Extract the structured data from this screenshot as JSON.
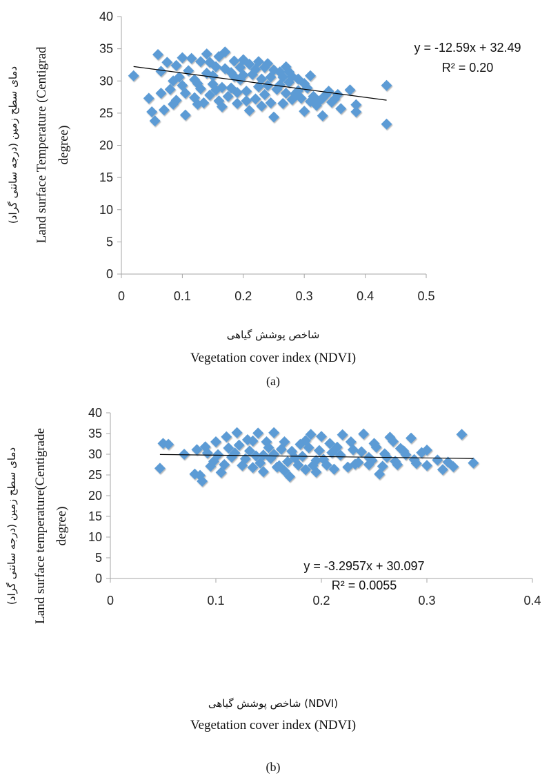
{
  "chart_data": [
    {
      "type": "scatter",
      "panel": "a",
      "xlim": [
        0,
        0.5
      ],
      "ylim": [
        0,
        40
      ],
      "x_ticks": [
        "0",
        "0.1",
        "0.2",
        "0.3",
        "0.4",
        "0.5"
      ],
      "y_ticks": [
        "0",
        "5",
        "10",
        "15",
        "20",
        "25",
        "30",
        "35",
        "40"
      ],
      "xlabel_fa": "شاخص پوشش گیاهی",
      "xlabel": "Vegetation cover index (NDVI)",
      "ylabel_fa": "دمای سطح زمین (درجه سانتی گراد)",
      "ylabel_lines": [
        "Land surface Temperature (Centigrad",
        "degree)"
      ],
      "trendline": {
        "slope": -12.59,
        "intercept": 32.49,
        "x_range": [
          0.02,
          0.435
        ]
      },
      "equation": "y = -12.59x + 32.49",
      "r2": "R² = 0.20",
      "caption": "(a)",
      "marker_color": "#5B9BD5",
      "points": [
        [
          0.02,
          30.8
        ],
        [
          0.055,
          23.8
        ],
        [
          0.06,
          34.1
        ],
        [
          0.07,
          25.5
        ],
        [
          0.045,
          27.3
        ],
        [
          0.05,
          25.2
        ],
        [
          0.105,
          24.7
        ],
        [
          0.065,
          31.5
        ],
        [
          0.08,
          28.7
        ],
        [
          0.09,
          32.4
        ],
        [
          0.1,
          29.3
        ],
        [
          0.12,
          27.4
        ],
        [
          0.13,
          33.0
        ],
        [
          0.14,
          34.2
        ],
        [
          0.15,
          30.8
        ],
        [
          0.16,
          26.9
        ],
        [
          0.17,
          34.5
        ],
        [
          0.18,
          31.3
        ],
        [
          0.19,
          28.2
        ],
        [
          0.2,
          33.3
        ],
        [
          0.21,
          25.4
        ],
        [
          0.22,
          31.8
        ],
        [
          0.23,
          26.1
        ],
        [
          0.24,
          32.7
        ],
        [
          0.25,
          24.4
        ],
        [
          0.26,
          29.4
        ],
        [
          0.27,
          32.2
        ],
        [
          0.28,
          27.1
        ],
        [
          0.29,
          30.3
        ],
        [
          0.3,
          25.3
        ],
        [
          0.31,
          30.8
        ],
        [
          0.32,
          26.2
        ],
        [
          0.33,
          24.6
        ],
        [
          0.34,
          28.4
        ],
        [
          0.35,
          27.2
        ],
        [
          0.36,
          25.7
        ],
        [
          0.375,
          28.6
        ],
        [
          0.385,
          25.2
        ],
        [
          0.385,
          26.3
        ],
        [
          0.435,
          29.3
        ],
        [
          0.435,
          23.3
        ],
        [
          0.11,
          31.6
        ],
        [
          0.125,
          29.6
        ],
        [
          0.145,
          27.8
        ],
        [
          0.155,
          32.2
        ],
        [
          0.165,
          29.0
        ],
        [
          0.175,
          27.6
        ],
        [
          0.185,
          33.1
        ],
        [
          0.195,
          30.2
        ],
        [
          0.205,
          28.4
        ],
        [
          0.215,
          31.0
        ],
        [
          0.225,
          29.1
        ],
        [
          0.235,
          27.9
        ],
        [
          0.245,
          30.6
        ],
        [
          0.255,
          28.7
        ],
        [
          0.265,
          26.5
        ],
        [
          0.275,
          29.8
        ],
        [
          0.285,
          28.0
        ],
        [
          0.295,
          27.3
        ],
        [
          0.305,
          28.9
        ],
        [
          0.315,
          27.6
        ],
        [
          0.325,
          26.9
        ],
        [
          0.335,
          27.8
        ],
        [
          0.345,
          26.7
        ],
        [
          0.355,
          27.9
        ],
        [
          0.09,
          27.0
        ],
        [
          0.095,
          30.6
        ],
        [
          0.075,
          32.9
        ],
        [
          0.085,
          26.4
        ],
        [
          0.115,
          33.5
        ],
        [
          0.135,
          26.6
        ],
        [
          0.14,
          31.2
        ],
        [
          0.16,
          33.8
        ],
        [
          0.19,
          26.5
        ],
        [
          0.2,
          30.9
        ],
        [
          0.21,
          32.6
        ],
        [
          0.22,
          27.2
        ],
        [
          0.24,
          29.3
        ],
        [
          0.26,
          31.4
        ],
        [
          0.27,
          28.1
        ],
        [
          0.28,
          30.7
        ],
        [
          0.3,
          29.6
        ],
        [
          0.1,
          33.6
        ],
        [
          0.12,
          30.2
        ],
        [
          0.13,
          28.8
        ],
        [
          0.15,
          29.5
        ],
        [
          0.17,
          31.9
        ],
        [
          0.18,
          28.9
        ],
        [
          0.23,
          30.3
        ],
        [
          0.25,
          31.7
        ],
        [
          0.29,
          28.5
        ],
        [
          0.31,
          26.8
        ],
        [
          0.33,
          27.3
        ],
        [
          0.065,
          28.1
        ],
        [
          0.085,
          30.0
        ],
        [
          0.105,
          28.1
        ],
        [
          0.145,
          32.9
        ],
        [
          0.185,
          30.7
        ],
        [
          0.225,
          33.0
        ],
        [
          0.265,
          30.6
        ],
        [
          0.245,
          26.6
        ],
        [
          0.205,
          26.9
        ],
        [
          0.165,
          26.0
        ],
        [
          0.125,
          26.4
        ],
        [
          0.155,
          28.6
        ],
        [
          0.195,
          32.1
        ],
        [
          0.235,
          32.1
        ],
        [
          0.275,
          31.4
        ]
      ]
    },
    {
      "type": "scatter",
      "panel": "b",
      "xlim": [
        0,
        0.4
      ],
      "ylim": [
        0,
        40
      ],
      "x_ticks": [
        "0",
        "0.1",
        "0.2",
        "0.3",
        "0.4"
      ],
      "y_ticks": [
        "0",
        "5",
        "10",
        "15",
        "20",
        "25",
        "30",
        "35",
        "40"
      ],
      "xlabel_fa": "شاخص پوشش گیاهی (NDVI)",
      "xlabel": "Vegetation cover index (NDVI)",
      "ylabel_fa": "دمای سطح زمین (درجه سانتی گراد)",
      "ylabel_lines": [
        "Land surface temperature(Centigrade",
        "degree)"
      ],
      "trendline": {
        "slope": -3.2957,
        "intercept": 30.097,
        "x_range": [
          0.047,
          0.344
        ]
      },
      "equation": "y = -3.2957x + 30.097",
      "r2": "R² = 0.0055",
      "caption": "(b)",
      "marker_color": "#5B9BD5",
      "points": [
        [
          0.047,
          26.6
        ],
        [
          0.05,
          32.6
        ],
        [
          0.055,
          32.4
        ],
        [
          0.07,
          30.0
        ],
        [
          0.08,
          25.2
        ],
        [
          0.085,
          24.9
        ],
        [
          0.087,
          23.5
        ],
        [
          0.09,
          31.8
        ],
        [
          0.095,
          27.1
        ],
        [
          0.1,
          33.0
        ],
        [
          0.105,
          25.6
        ],
        [
          0.11,
          34.2
        ],
        [
          0.115,
          29.3
        ],
        [
          0.12,
          35.2
        ],
        [
          0.125,
          27.3
        ],
        [
          0.13,
          33.5
        ],
        [
          0.135,
          26.8
        ],
        [
          0.14,
          35.1
        ],
        [
          0.145,
          29.8
        ],
        [
          0.15,
          31.6
        ],
        [
          0.155,
          35.2
        ],
        [
          0.16,
          27.2
        ],
        [
          0.165,
          33.0
        ],
        [
          0.17,
          24.6
        ],
        [
          0.175,
          29.1
        ],
        [
          0.18,
          32.4
        ],
        [
          0.185,
          26.3
        ],
        [
          0.19,
          34.8
        ],
        [
          0.195,
          28.5
        ],
        [
          0.2,
          34.3
        ],
        [
          0.205,
          27.4
        ],
        [
          0.21,
          30.4
        ],
        [
          0.22,
          34.7
        ],
        [
          0.225,
          26.9
        ],
        [
          0.23,
          31.1
        ],
        [
          0.235,
          28.0
        ],
        [
          0.24,
          34.9
        ],
        [
          0.245,
          29.2
        ],
        [
          0.25,
          32.6
        ],
        [
          0.255,
          25.2
        ],
        [
          0.26,
          30.1
        ],
        [
          0.265,
          34.1
        ],
        [
          0.27,
          28.3
        ],
        [
          0.275,
          31.4
        ],
        [
          0.28,
          29.9
        ],
        [
          0.285,
          33.9
        ],
        [
          0.29,
          27.8
        ],
        [
          0.295,
          30.4
        ],
        [
          0.3,
          27.3
        ],
        [
          0.31,
          28.6
        ],
        [
          0.315,
          26.3
        ],
        [
          0.32,
          28.1
        ],
        [
          0.325,
          27.0
        ],
        [
          0.333,
          34.8
        ],
        [
          0.344,
          27.9
        ],
        [
          0.112,
          31.5
        ],
        [
          0.118,
          30.3
        ],
        [
          0.122,
          32.2
        ],
        [
          0.128,
          28.9
        ],
        [
          0.132,
          30.8
        ],
        [
          0.138,
          29.6
        ],
        [
          0.142,
          27.9
        ],
        [
          0.148,
          33.0
        ],
        [
          0.152,
          29.0
        ],
        [
          0.158,
          26.9
        ],
        [
          0.162,
          31.2
        ],
        [
          0.168,
          28.2
        ],
        [
          0.172,
          30.7
        ],
        [
          0.178,
          27.4
        ],
        [
          0.182,
          29.5
        ],
        [
          0.188,
          31.6
        ],
        [
          0.192,
          27.3
        ],
        [
          0.198,
          30.9
        ],
        [
          0.202,
          28.8
        ],
        [
          0.208,
          32.6
        ],
        [
          0.212,
          26.4
        ],
        [
          0.218,
          29.8
        ],
        [
          0.228,
          33.0
        ],
        [
          0.232,
          27.6
        ],
        [
          0.238,
          30.6
        ],
        [
          0.248,
          28.5
        ],
        [
          0.252,
          31.7
        ],
        [
          0.258,
          27.1
        ],
        [
          0.262,
          29.3
        ],
        [
          0.268,
          33.1
        ],
        [
          0.272,
          27.5
        ],
        [
          0.278,
          30.8
        ],
        [
          0.288,
          28.7
        ],
        [
          0.3,
          31.0
        ],
        [
          0.108,
          27.5
        ],
        [
          0.102,
          29.9
        ],
        [
          0.098,
          28.3
        ],
        [
          0.092,
          30.3
        ],
        [
          0.082,
          31.1
        ],
        [
          0.135,
          33.2
        ],
        [
          0.145,
          25.8
        ],
        [
          0.185,
          33.3
        ],
        [
          0.155,
          30.0
        ],
        [
          0.165,
          26.0
        ],
        [
          0.195,
          25.7
        ],
        [
          0.215,
          31.7
        ],
        [
          0.245,
          27.5
        ]
      ]
    }
  ]
}
